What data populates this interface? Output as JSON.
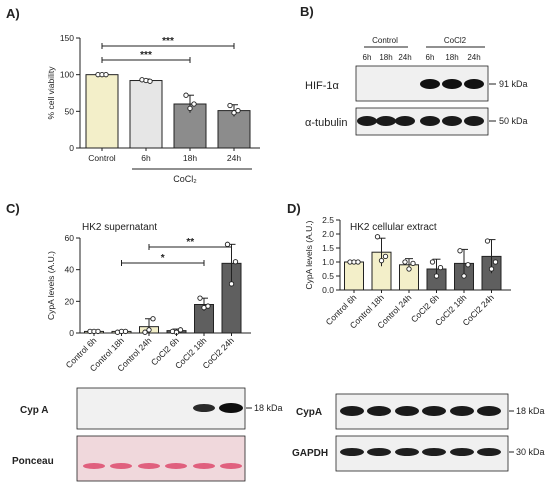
{
  "figure": {
    "panel_a_letter": "A)",
    "panel_b_letter": "B)",
    "panel_c_letter": "C)",
    "panel_d_letter": "D)"
  },
  "chart_data": [
    {
      "id": "A",
      "type": "bar",
      "ylabel": "% cell viability",
      "yticks": [
        0,
        50,
        100,
        150
      ],
      "ylim": [
        0,
        150
      ],
      "categories": [
        "Control",
        "6h",
        "18h",
        "24h"
      ],
      "group_label": "CoCl₂",
      "values": [
        100,
        92,
        60,
        51
      ],
      "errors": [
        1,
        2,
        12,
        8
      ],
      "points": [
        [
          100,
          100,
          100
        ],
        [
          93,
          92,
          91
        ],
        [
          72,
          54,
          60
        ],
        [
          58,
          48,
          51
        ]
      ],
      "colors": [
        "#f3efc9",
        "#e6e6e6",
        "#8c8c8c",
        "#8c8c8c"
      ],
      "significance": [
        {
          "from": "Control",
          "to": "18h",
          "label": "***"
        },
        {
          "from": "Control",
          "to": "24h",
          "label": "***"
        }
      ]
    },
    {
      "id": "C",
      "type": "bar",
      "title": "HK2 supernatant",
      "ylabel": "CypA levels (A.U.)",
      "yticks": [
        0,
        20,
        40,
        60
      ],
      "ylim": [
        0,
        60
      ],
      "categories": [
        "Control 6h",
        "Control 18h",
        "Control 24h",
        "CoCl2 6h",
        "CoCl2 18h",
        "CoCl2 24h"
      ],
      "values": [
        1,
        1,
        4,
        1.5,
        18,
        44
      ],
      "errors": [
        0.3,
        0.4,
        5,
        1,
        4,
        12
      ],
      "points": [
        [
          1,
          1,
          1
        ],
        [
          0.5,
          1,
          1
        ],
        [
          0.5,
          2,
          9
        ],
        [
          1,
          0.5,
          2
        ],
        [
          22,
          16,
          17
        ],
        [
          56,
          31,
          45
        ]
      ],
      "colors": [
        "#f3efc9",
        "#f3efc9",
        "#f3efc9",
        "#5f5f5f",
        "#5f5f5f",
        "#5f5f5f"
      ],
      "significance": [
        {
          "from": "Control 18h",
          "to": "CoCl2 18h",
          "label": "*"
        },
        {
          "from": "Control 24h",
          "to": "CoCl2 24h",
          "label": "**"
        }
      ]
    },
    {
      "id": "D",
      "type": "bar",
      "title": "HK2 cellular extract",
      "ylabel": "CypA levels (A.U.)",
      "yticks": [
        0.0,
        0.5,
        1.0,
        1.5,
        2.0,
        2.5
      ],
      "ylim": [
        0,
        2.5
      ],
      "categories": [
        "Control 6h",
        "Control 18h",
        "Control 24h",
        "CoCl2 6h",
        "CoCl2 18h",
        "CoCl2 24h"
      ],
      "values": [
        1.0,
        1.35,
        0.9,
        0.75,
        0.95,
        1.2
      ],
      "errors": [
        0.02,
        0.5,
        0.22,
        0.35,
        0.5,
        0.6
      ],
      "points": [
        [
          1,
          1,
          1
        ],
        [
          1.9,
          1.05,
          1.2
        ],
        [
          1.0,
          0.75,
          0.95
        ],
        [
          1.0,
          0.5,
          0.8
        ],
        [
          1.4,
          0.5,
          0.9
        ],
        [
          1.75,
          0.75,
          1.0
        ]
      ],
      "colors": [
        "#f3efc9",
        "#f3efc9",
        "#f3efc9",
        "#5f5f5f",
        "#5f5f5f",
        "#5f5f5f"
      ]
    }
  ],
  "blot_b": {
    "group1": "Control",
    "group2": "CoCl2",
    "lanes": [
      "6h",
      "18h",
      "24h",
      "6h",
      "18h",
      "24h"
    ],
    "row1_label": "HIF-1α",
    "row2_label": "α-tubulin",
    "row1_marker": "91 kDa",
    "row2_marker": "50 kDa"
  },
  "blot_c": {
    "row1_label": "Cyp A",
    "row2_label": "Ponceau",
    "row1_marker": "18 kDa"
  },
  "blot_d": {
    "row1_label": "CypA",
    "row2_label": "GAPDH",
    "row1_marker": "18 kDa",
    "row2_marker": "30 kDa"
  }
}
